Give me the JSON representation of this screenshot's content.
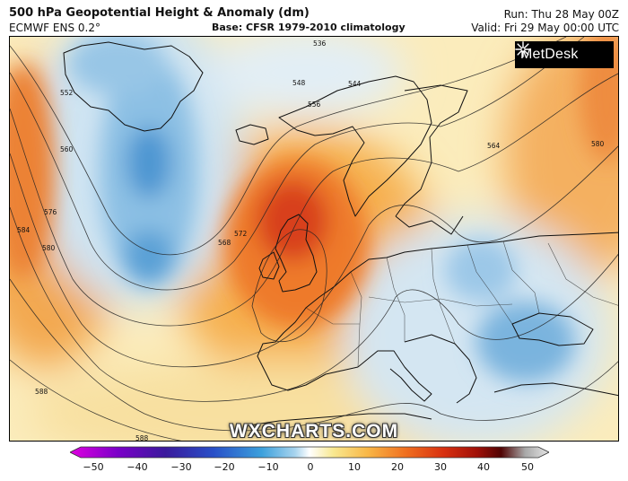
{
  "header": {
    "title": "500 hPa Geopotential Height & Anomaly (dm)",
    "model": "ECMWF ENS 0.2°",
    "base": "Base: CFSR 1979-2010 climatology",
    "run": "Run: Thu 28 May 00Z",
    "valid": "Valid: Fri 29 May 00:00 UTC"
  },
  "branding": {
    "logo_text": "MetDesk",
    "watermark": "WXCHARTS.COM"
  },
  "map": {
    "region": "Europe / North Atlantic",
    "contour_labels": [
      "536",
      "544",
      "548",
      "552",
      "556",
      "560",
      "564",
      "568",
      "572",
      "576",
      "580",
      "584",
      "588"
    ],
    "features": {
      "ridge_center": "British Isles",
      "trough_west": "Greenland / Labrador Sea",
      "trough_east": "Balkans / Aegean"
    }
  },
  "colorbar": {
    "ticks": [
      "−50",
      "−40",
      "−30",
      "−20",
      "−10",
      "0",
      "10",
      "20",
      "30",
      "40",
      "50"
    ],
    "colors": [
      "#e000e0",
      "#7a00c8",
      "#3a1a9c",
      "#2850c8",
      "#3ca0dc",
      "#a8d4ee",
      "#ffffff",
      "#f8e890",
      "#f8b848",
      "#f07020",
      "#d83010",
      "#a01008",
      "#500404",
      "#a8a8a8",
      "#e6e6e6"
    ]
  }
}
